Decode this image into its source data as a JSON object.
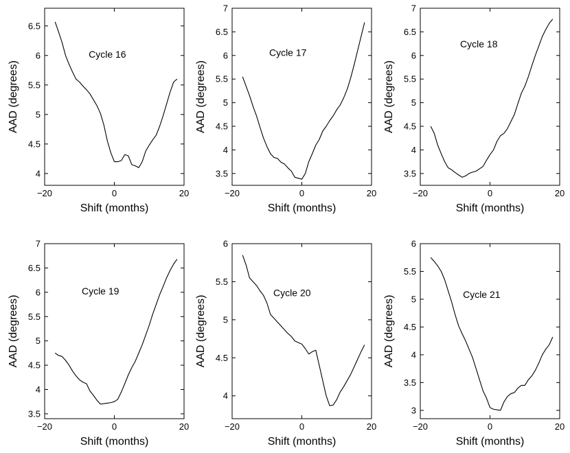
{
  "chart_data": [
    {
      "type": "line",
      "annotation": "Cycle 16",
      "xlabel": "Shift (months)",
      "ylabel": "AAD (degrees)",
      "xlim": [
        -20,
        20
      ],
      "ylim": [
        3.8,
        6.8
      ],
      "xticks": [
        -20,
        0,
        20
      ],
      "yticks": [
        4,
        4.5,
        5,
        5.5,
        6,
        6.5
      ],
      "ytick_labels": [
        "4",
        "4.5",
        "5",
        "5.5",
        "6",
        "6.5"
      ],
      "grid": false,
      "series": [
        {
          "x": [
            -17,
            -16,
            -15,
            -14,
            -13,
            -12,
            -11,
            -10,
            -9,
            -8,
            -7,
            -6,
            -5,
            -4,
            -3,
            -2,
            -1,
            0,
            1,
            2,
            3,
            4,
            5,
            6,
            7,
            8,
            9,
            10,
            11,
            12,
            13,
            14,
            15,
            16,
            17,
            18
          ],
          "values": [
            6.57,
            6.4,
            6.22,
            6.0,
            5.85,
            5.72,
            5.6,
            5.55,
            5.48,
            5.42,
            5.35,
            5.25,
            5.15,
            5.02,
            4.82,
            4.55,
            4.35,
            4.2,
            4.2,
            4.22,
            4.32,
            4.3,
            4.15,
            4.13,
            4.1,
            4.2,
            4.38,
            4.48,
            4.57,
            4.65,
            4.8,
            4.98,
            5.18,
            5.38,
            5.55,
            5.6
          ]
        }
      ]
    },
    {
      "type": "line",
      "annotation": "Cycle 17",
      "xlabel": "Shift (months)",
      "ylabel": "AAD (degrees)",
      "xlim": [
        -20,
        20
      ],
      "ylim": [
        3.25,
        7.0
      ],
      "xticks": [
        -20,
        0,
        20
      ],
      "yticks": [
        3.5,
        4,
        4.5,
        5,
        5.5,
        6,
        6.5,
        7
      ],
      "ytick_labels": [
        "3.5",
        "4",
        "4.5",
        "5",
        "5.5",
        "6",
        "6.5",
        "7"
      ],
      "grid": false,
      "series": [
        {
          "x": [
            -17,
            -16,
            -15,
            -14,
            -13,
            -12,
            -11,
            -10,
            -9,
            -8,
            -7,
            -6,
            -5,
            -4,
            -3,
            -2,
            -1,
            0,
            1,
            2,
            3,
            4,
            5,
            6,
            7,
            8,
            9,
            10,
            11,
            12,
            13,
            14,
            15,
            16,
            17,
            18
          ],
          "values": [
            5.55,
            5.35,
            5.15,
            4.92,
            4.72,
            4.48,
            4.25,
            4.07,
            3.92,
            3.84,
            3.82,
            3.74,
            3.7,
            3.62,
            3.55,
            3.42,
            3.4,
            3.38,
            3.5,
            3.75,
            3.92,
            4.1,
            4.22,
            4.4,
            4.5,
            4.62,
            4.72,
            4.85,
            4.95,
            5.1,
            5.28,
            5.52,
            5.8,
            6.1,
            6.4,
            6.7
          ]
        }
      ]
    },
    {
      "type": "line",
      "annotation": "Cycle 18",
      "xlabel": "Shift (months)",
      "ylabel": "AAD (degrees)",
      "xlim": [
        -20,
        20
      ],
      "ylim": [
        3.25,
        7.0
      ],
      "xticks": [
        -20,
        0,
        20
      ],
      "yticks": [
        3.5,
        4,
        4.5,
        5,
        5.5,
        6,
        6.5,
        7
      ],
      "ytick_labels": [
        "3.5",
        "4",
        "4.5",
        "5",
        "5.5",
        "6",
        "6.5",
        "7"
      ],
      "grid": false,
      "series": [
        {
          "x": [
            -17,
            -16,
            -15,
            -14,
            -13,
            -12,
            -11,
            -10,
            -9,
            -8,
            -7,
            -6,
            -5,
            -4,
            -3,
            -2,
            -1,
            0,
            1,
            2,
            3,
            4,
            5,
            6,
            7,
            8,
            9,
            10,
            11,
            12,
            13,
            14,
            15,
            16,
            17,
            18
          ],
          "values": [
            4.5,
            4.35,
            4.1,
            3.92,
            3.75,
            3.62,
            3.58,
            3.52,
            3.47,
            3.42,
            3.45,
            3.5,
            3.53,
            3.55,
            3.6,
            3.65,
            3.78,
            3.9,
            4.0,
            4.18,
            4.3,
            4.35,
            4.45,
            4.6,
            4.75,
            4.98,
            5.2,
            5.35,
            5.55,
            5.78,
            6.0,
            6.2,
            6.4,
            6.55,
            6.68,
            6.77
          ]
        }
      ]
    },
    {
      "type": "line",
      "annotation": "Cycle 19",
      "xlabel": "Shift (months)",
      "ylabel": "AAD (degrees)",
      "xlim": [
        -20,
        20
      ],
      "ylim": [
        3.4,
        7.0
      ],
      "xticks": [
        -20,
        0,
        20
      ],
      "yticks": [
        3.5,
        4,
        4.5,
        5,
        5.5,
        6,
        6.5,
        7
      ],
      "ytick_labels": [
        "3.5",
        "4",
        "4.5",
        "5",
        "5.5",
        "6",
        "6.5",
        "7"
      ],
      "grid": false,
      "series": [
        {
          "x": [
            -17,
            -16,
            -15,
            -14,
            -13,
            -12,
            -11,
            -10,
            -9,
            -8,
            -7,
            -6,
            -5,
            -4,
            -3,
            -2,
            -1,
            0,
            1,
            2,
            3,
            4,
            5,
            6,
            7,
            8,
            9,
            10,
            11,
            12,
            13,
            14,
            15,
            16,
            17,
            18
          ],
          "values": [
            4.75,
            4.7,
            4.68,
            4.6,
            4.5,
            4.38,
            4.28,
            4.2,
            4.15,
            4.12,
            3.97,
            3.88,
            3.78,
            3.7,
            3.71,
            3.72,
            3.73,
            3.75,
            3.8,
            3.95,
            4.12,
            4.3,
            4.45,
            4.58,
            4.75,
            4.92,
            5.12,
            5.32,
            5.55,
            5.75,
            5.95,
            6.12,
            6.3,
            6.45,
            6.58,
            6.68
          ]
        }
      ]
    },
    {
      "type": "line",
      "annotation": "Cycle 20",
      "xlabel": "Shift (months)",
      "ylabel": "AAD (degrees)",
      "xlim": [
        -20,
        20
      ],
      "ylim": [
        3.7,
        6.0
      ],
      "xticks": [
        -20,
        0,
        20
      ],
      "yticks": [
        4,
        4.5,
        5,
        5.5,
        6
      ],
      "ytick_labels": [
        "4",
        "4.5",
        "5",
        "5.5",
        "6"
      ],
      "grid": false,
      "series": [
        {
          "x": [
            -17,
            -16,
            -15,
            -14,
            -13,
            -12,
            -11,
            -10,
            -9,
            -8,
            -7,
            -6,
            -5,
            -4,
            -3,
            -2,
            -1,
            0,
            1,
            2,
            3,
            4,
            5,
            6,
            7,
            8,
            9,
            10,
            11,
            12,
            13,
            14,
            15,
            16,
            17,
            18
          ],
          "values": [
            5.85,
            5.72,
            5.55,
            5.5,
            5.45,
            5.38,
            5.32,
            5.22,
            5.07,
            5.02,
            4.97,
            4.92,
            4.87,
            4.82,
            4.78,
            4.72,
            4.7,
            4.68,
            4.62,
            4.55,
            4.58,
            4.6,
            4.4,
            4.2,
            4.0,
            3.87,
            3.88,
            3.95,
            4.05,
            4.12,
            4.2,
            4.28,
            4.38,
            4.48,
            4.58,
            4.67
          ]
        }
      ]
    },
    {
      "type": "line",
      "annotation": "Cycle 21",
      "xlabel": "Shift (months)",
      "ylabel": "AAD (degrees)",
      "xlim": [
        -20,
        20
      ],
      "ylim": [
        2.85,
        6.0
      ],
      "xticks": [
        -20,
        0,
        20
      ],
      "yticks": [
        3,
        3.5,
        4,
        4.5,
        5,
        5.5,
        6
      ],
      "ytick_labels": [
        "3",
        "3.5",
        "4",
        "4.5",
        "5",
        "5.5",
        "6"
      ],
      "grid": false,
      "series": [
        {
          "x": [
            -17,
            -16,
            -15,
            -14,
            -13,
            -12,
            -11,
            -10,
            -9,
            -8,
            -7,
            -6,
            -5,
            -4,
            -3,
            -2,
            -1,
            0,
            1,
            2,
            3,
            4,
            5,
            6,
            7,
            8,
            9,
            10,
            11,
            12,
            13,
            14,
            15,
            16,
            17,
            18
          ],
          "values": [
            5.75,
            5.68,
            5.6,
            5.5,
            5.35,
            5.15,
            4.95,
            4.72,
            4.52,
            4.38,
            4.25,
            4.1,
            3.95,
            3.75,
            3.55,
            3.35,
            3.22,
            3.05,
            3.02,
            3.01,
            3.0,
            3.15,
            3.25,
            3.3,
            3.32,
            3.4,
            3.45,
            3.45,
            3.55,
            3.62,
            3.72,
            3.85,
            4.0,
            4.1,
            4.18,
            4.32
          ]
        }
      ]
    }
  ]
}
